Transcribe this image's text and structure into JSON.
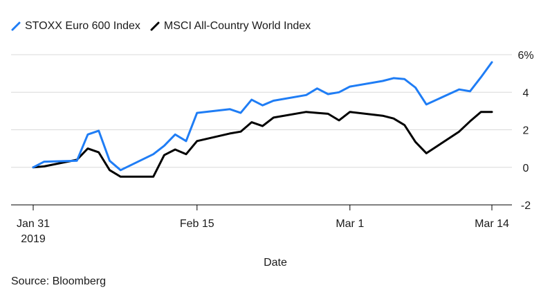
{
  "chart_data": {
    "type": "line",
    "title": "",
    "xlabel": "Date",
    "ylabel": "",
    "ylim": [
      -2,
      6
    ],
    "yticks": [
      -2,
      0,
      2,
      4,
      6
    ],
    "ytick_labels": [
      "-2",
      "0",
      "2",
      "4",
      "6%"
    ],
    "grid": "horizontal",
    "legend": "top-left",
    "x_ticks": [
      {
        "date": "2019-01-31",
        "label": "Jan 31",
        "sublabel": "2019"
      },
      {
        "date": "2019-02-15",
        "label": "Feb 15",
        "sublabel": ""
      },
      {
        "date": "2019-03-01",
        "label": "Mar 1",
        "sublabel": ""
      },
      {
        "date": "2019-03-14",
        "label": "Mar 14",
        "sublabel": ""
      }
    ],
    "x": [
      "2019-01-31",
      "2019-02-01",
      "2019-02-04",
      "2019-02-05",
      "2019-02-06",
      "2019-02-07",
      "2019-02-08",
      "2019-02-11",
      "2019-02-12",
      "2019-02-13",
      "2019-02-14",
      "2019-02-15",
      "2019-02-18",
      "2019-02-19",
      "2019-02-20",
      "2019-02-21",
      "2019-02-22",
      "2019-02-25",
      "2019-02-26",
      "2019-02-27",
      "2019-02-28",
      "2019-03-01",
      "2019-03-04",
      "2019-03-05",
      "2019-03-06",
      "2019-03-07",
      "2019-03-08",
      "2019-03-11",
      "2019-03-12",
      "2019-03-13",
      "2019-03-14"
    ],
    "series": [
      {
        "name": "STOXX Euro 600 Index",
        "color": "#1f7df5",
        "values": [
          0.0,
          0.3,
          0.35,
          1.75,
          1.95,
          0.35,
          -0.15,
          0.7,
          1.15,
          1.75,
          1.4,
          2.9,
          3.1,
          2.9,
          3.6,
          3.3,
          3.55,
          3.85,
          4.2,
          3.9,
          4.0,
          4.3,
          4.6,
          4.75,
          4.7,
          4.25,
          3.35,
          4.15,
          4.05,
          4.8,
          5.6
        ]
      },
      {
        "name": "MSCI All-Country World Index",
        "color": "#000000",
        "values": [
          0.0,
          0.05,
          0.4,
          1.0,
          0.8,
          -0.15,
          -0.5,
          -0.5,
          0.65,
          0.95,
          0.7,
          1.4,
          1.8,
          1.9,
          2.4,
          2.2,
          2.65,
          2.95,
          2.9,
          2.85,
          2.5,
          2.95,
          2.75,
          2.6,
          2.25,
          1.35,
          0.75,
          1.9,
          2.45,
          2.95,
          2.95
        ]
      }
    ],
    "source": "Source: Bloomberg"
  }
}
